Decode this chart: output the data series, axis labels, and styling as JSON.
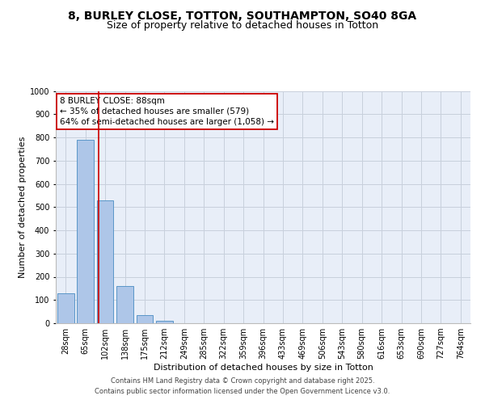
{
  "title_line1": "8, BURLEY CLOSE, TOTTON, SOUTHAMPTON, SO40 8GA",
  "title_line2": "Size of property relative to detached houses in Totton",
  "xlabel": "Distribution of detached houses by size in Totton",
  "ylabel": "Number of detached properties",
  "bar_labels": [
    "28sqm",
    "65sqm",
    "102sqm",
    "138sqm",
    "175sqm",
    "212sqm",
    "249sqm",
    "285sqm",
    "322sqm",
    "359sqm",
    "396sqm",
    "433sqm",
    "469sqm",
    "506sqm",
    "543sqm",
    "580sqm",
    "616sqm",
    "653sqm",
    "690sqm",
    "727sqm",
    "764sqm"
  ],
  "bar_heights": [
    130,
    790,
    530,
    160,
    35,
    10,
    0,
    0,
    0,
    0,
    0,
    0,
    0,
    0,
    0,
    0,
    0,
    0,
    0,
    0,
    0
  ],
  "bar_color": "#aec6e8",
  "bar_edge_color": "#5a96c8",
  "vline_x": 1.65,
  "vline_color": "#cc0000",
  "annotation_line1": "8 BURLEY CLOSE: 88sqm",
  "annotation_line2": "← 35% of detached houses are smaller (579)",
  "annotation_line3": "64% of semi-detached houses are larger (1,058) →",
  "annotation_box_color": "#cc0000",
  "ylim": [
    0,
    1000
  ],
  "yticks": [
    0,
    100,
    200,
    300,
    400,
    500,
    600,
    700,
    800,
    900,
    1000
  ],
  "grid_color": "#c8d0dc",
  "background_color": "#e8eef8",
  "footer_line1": "Contains HM Land Registry data © Crown copyright and database right 2025.",
  "footer_line2": "Contains public sector information licensed under the Open Government Licence v3.0.",
  "title_fontsize": 10,
  "subtitle_fontsize": 9,
  "axis_label_fontsize": 8,
  "tick_fontsize": 7,
  "annotation_fontsize": 7.5,
  "footer_fontsize": 6
}
